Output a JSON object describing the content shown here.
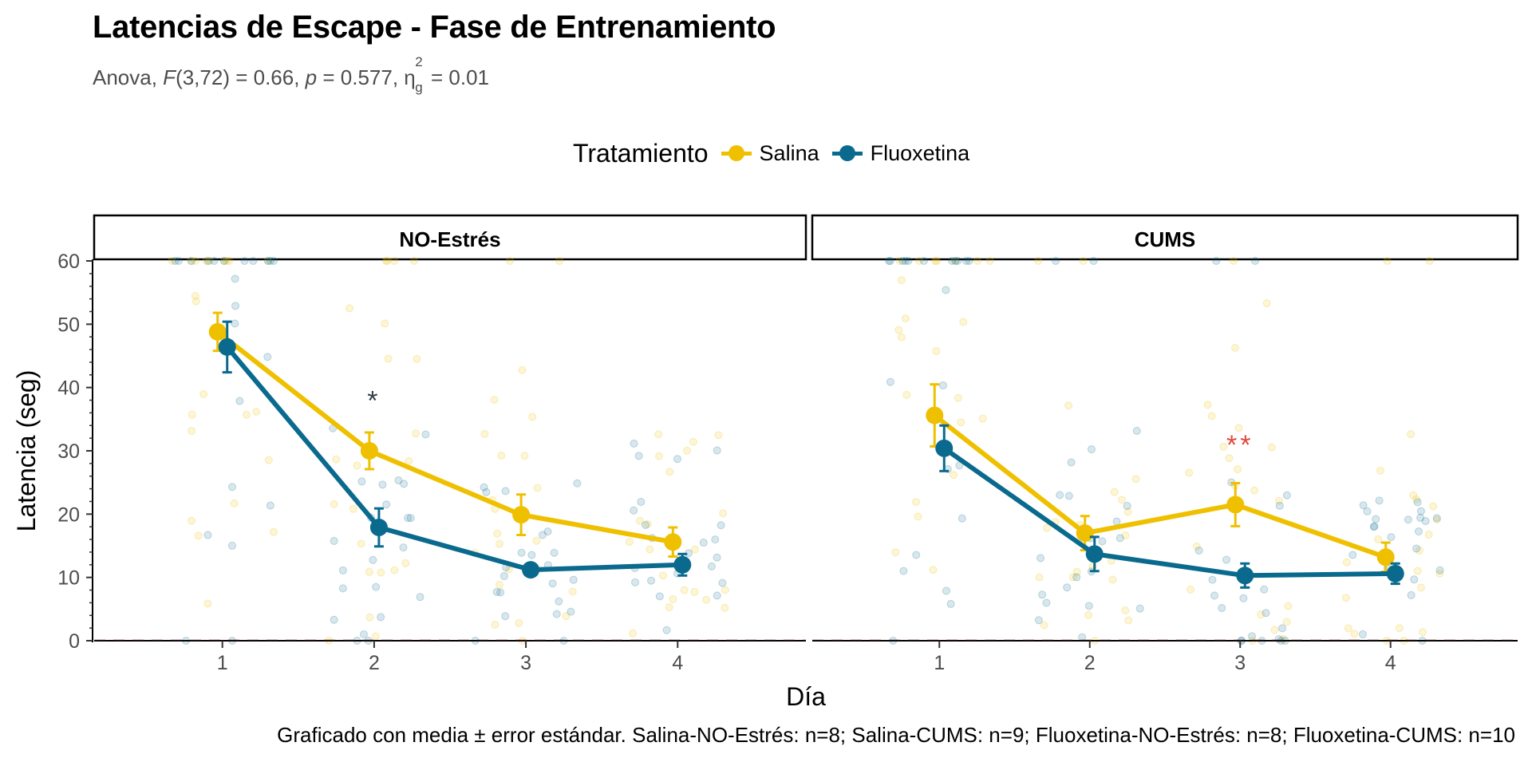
{
  "title": "Latencias de Escape - Fase de Entrenamiento",
  "subtitle": {
    "prefix": "Anova, ",
    "F_symbol": "F",
    "F_value": "(3,72) = 0.66, ",
    "p_symbol": "p",
    "p_value": " = 0.577, ",
    "eta_symbol": "η",
    "eta_sup": "2",
    "eta_sub": "g",
    "eta_value": " = 0.01"
  },
  "legend": {
    "title": "Tratamiento",
    "placement": "top",
    "items": [
      {
        "label": "Salina",
        "color": "#EFC000"
      },
      {
        "label": "Fluoxetina",
        "color": "#0A6A8E"
      }
    ]
  },
  "caption": "Graficado con media ± error estándar. Salina-NO-Estrés: n=8; Salina-CUMS: n=9; Fluoxetina-NO-Estrés: n=8; Fluoxetina-CUMS: n=10",
  "chart_data": {
    "type": "line",
    "xlabel": "Día",
    "ylabel": "Latencia (seg)",
    "categories": [
      "1",
      "2",
      "3",
      "4"
    ],
    "ylim": [
      0,
      60
    ],
    "yticks": [
      0,
      10,
      20,
      30,
      40,
      50,
      60
    ],
    "grid": false,
    "error_bars": "mean ± SE",
    "colors": {
      "Salina": "#EFC000",
      "Fluoxetina": "#0A6A8E",
      "sig_dark": "#2F3D48",
      "sig_red": "#E0493B"
    },
    "panels": [
      {
        "name": "NO-Estrés",
        "series": [
          {
            "name": "Salina",
            "values": [
              48.8,
              30.0,
              19.9,
              15.6
            ],
            "errors": [
              3.0,
              2.9,
              3.2,
              2.3
            ]
          },
          {
            "name": "Fluoxetina",
            "values": [
              46.4,
              17.9,
              11.2,
              12.0
            ],
            "errors": [
              4.0,
              3.0,
              0.8,
              1.7
            ]
          }
        ],
        "annotations": [
          {
            "x": "2",
            "y": 38.5,
            "text": "*",
            "color": "#2F3D48"
          }
        ]
      },
      {
        "name": "CUMS",
        "series": [
          {
            "name": "Salina",
            "values": [
              35.6,
              17.0,
              21.5,
              13.2
            ],
            "errors": [
              4.9,
              2.7,
              3.4,
              2.3
            ]
          },
          {
            "name": "Fluoxetina",
            "values": [
              30.4,
              13.7,
              10.3,
              10.6
            ],
            "errors": [
              3.6,
              2.7,
              1.9,
              1.6
            ]
          }
        ],
        "annotations": [
          {
            "x": "3",
            "y": 31.5,
            "text": "**",
            "color": "#E0493B"
          }
        ]
      }
    ]
  }
}
